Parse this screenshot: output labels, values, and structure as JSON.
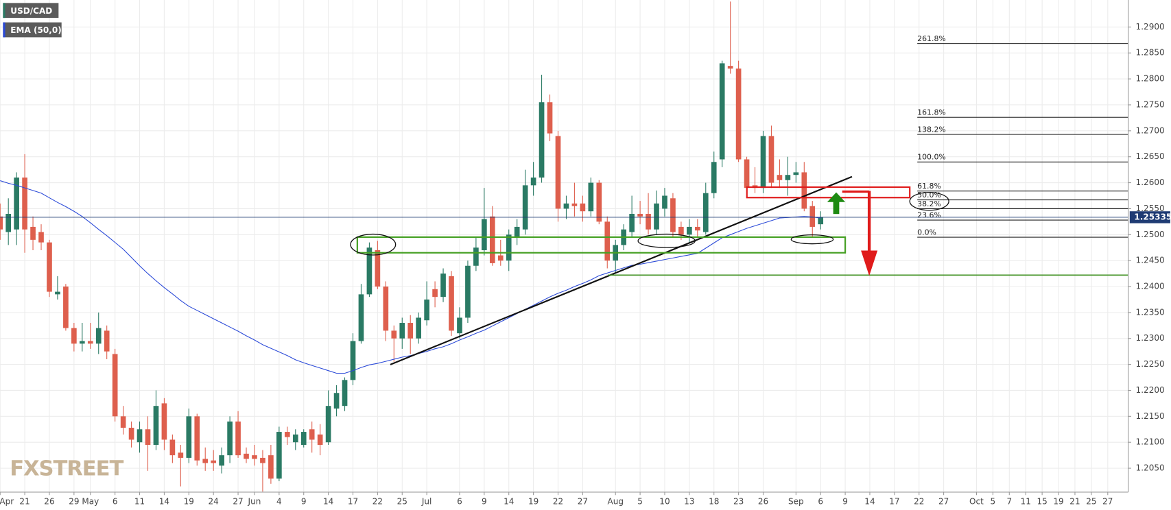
{
  "chart_data": {
    "type": "candlestick",
    "categories": [
      "Apr",
      null,
      null,
      "21",
      null,
      null,
      "26",
      null,
      null,
      "29",
      null,
      "May",
      null,
      null,
      "6",
      null,
      null,
      "11",
      null,
      null,
      "14",
      null,
      null,
      "19",
      null,
      null,
      "24",
      null,
      null,
      "27",
      null,
      "Jun",
      null,
      null,
      "4",
      null,
      null,
      "9",
      null,
      null,
      "14",
      null,
      null,
      "17",
      null,
      null,
      "22",
      null,
      null,
      "25",
      null,
      null,
      "Jul",
      null,
      null,
      null,
      "6",
      null,
      null,
      "9",
      null,
      null,
      "14",
      null,
      null,
      "19",
      null,
      null,
      "22",
      null,
      null,
      "27",
      null,
      null,
      null,
      "Aug",
      null,
      null,
      "5",
      null,
      null,
      "10",
      null,
      null,
      "13",
      null,
      null,
      "18",
      null,
      null,
      "23",
      null,
      null,
      "26",
      null,
      null,
      null,
      "Sep",
      null,
      null,
      "6",
      null,
      null,
      "9",
      null,
      null,
      "14",
      null,
      null,
      "17",
      null,
      null,
      "22",
      null,
      null,
      "27",
      null,
      null,
      null,
      "Oct",
      null,
      "5",
      null,
      "7",
      null,
      "11",
      null,
      "15",
      null,
      "19",
      null,
      "21",
      null,
      "25",
      null,
      "27",
      null,
      null
    ],
    "ohlc": {
      "name": "USD/CAD",
      "up_color": "#2a7a64",
      "down_color": "#de5f4d",
      "open": [
        1.2535,
        1.2505,
        1.251,
        1.261,
        1.2515,
        1.2505,
        1.2485,
        1.2385,
        1.24,
        1.232,
        1.229,
        1.2295,
        1.229,
        1.2315,
        1.227,
        1.215,
        1.2128,
        1.21,
        1.2125,
        1.2095,
        1.2175,
        1.2105,
        1.208,
        1.207,
        1.215,
        1.2068,
        1.2065,
        1.2055,
        1.2075,
        1.214,
        1.2078,
        1.2075,
        1.207,
        1.2075,
        1.203,
        1.212,
        1.21,
        1.2095,
        1.2125,
        1.2115,
        1.21,
        1.2165,
        1.217,
        1.222,
        1.2295,
        1.2385,
        1.247,
        1.24,
        1.2315,
        1.23,
        1.233,
        1.23,
        1.2335,
        1.2395,
        1.238,
        1.242,
        1.231,
        1.234,
        1.244,
        1.247,
        1.2535,
        1.246,
        1.245,
        1.2495,
        1.251,
        1.2595,
        1.261,
        1.2755,
        1.269,
        1.255,
        1.256,
        1.256,
        1.2545,
        1.26,
        1.2525,
        1.245,
        1.248,
        1.2505,
        1.254,
        1.254,
        1.251,
        1.255,
        1.257,
        1.2515,
        1.25,
        1.2515,
        1.2505,
        1.258,
        1.2645,
        1.2825,
        1.282,
        1.2645,
        1.2595,
        1.259,
        1.269,
        1.2615,
        1.2605,
        1.2615,
        1.262,
        1.2555,
        1.252,
        null,
        null,
        null,
        null,
        null,
        null,
        null,
        null,
        null,
        null,
        null,
        null,
        null,
        null,
        null,
        null,
        null,
        null,
        null,
        null,
        null,
        null,
        null,
        null,
        null,
        null,
        null,
        null,
        null,
        null,
        null,
        null,
        null,
        null,
        null,
        null,
        null
      ],
      "high": [
        1.256,
        1.257,
        1.262,
        1.2655,
        1.2535,
        1.252,
        1.249,
        1.242,
        1.2405,
        1.233,
        1.233,
        1.233,
        1.235,
        1.2325,
        1.228,
        1.217,
        1.214,
        1.214,
        1.215,
        1.22,
        1.2185,
        1.2115,
        1.2095,
        1.2165,
        1.2155,
        1.209,
        1.2085,
        1.209,
        1.215,
        1.216,
        1.209,
        1.2095,
        1.2085,
        1.2095,
        1.213,
        1.213,
        1.2125,
        1.2125,
        1.214,
        1.2135,
        1.22,
        1.221,
        1.2225,
        1.231,
        1.2405,
        1.2485,
        1.2488,
        1.241,
        1.2325,
        1.234,
        1.2345,
        1.235,
        1.241,
        1.241,
        1.2435,
        1.243,
        1.236,
        1.245,
        1.2495,
        1.259,
        1.2555,
        1.249,
        1.251,
        1.253,
        1.2625,
        1.264,
        1.2808,
        1.277,
        1.27,
        1.2575,
        1.26,
        1.2575,
        1.261,
        1.2605,
        1.2535,
        1.249,
        1.252,
        1.2575,
        1.2565,
        1.258,
        1.2585,
        1.259,
        1.258,
        1.2525,
        1.253,
        1.253,
        1.26,
        1.266,
        1.2835,
        1.2949,
        1.2835,
        1.265,
        1.263,
        1.27,
        1.271,
        1.2645,
        1.265,
        1.264,
        1.264,
        1.2565,
        1.2545,
        null,
        null,
        null,
        null,
        null,
        null,
        null,
        null,
        null,
        null,
        null,
        null,
        null,
        null,
        null,
        null,
        null,
        null,
        null,
        null,
        null,
        null,
        null,
        null,
        null,
        null,
        null,
        null,
        null,
        null,
        null,
        null,
        null,
        null,
        null,
        null,
        null
      ],
      "low": [
        1.249,
        1.248,
        1.248,
        1.2465,
        1.247,
        1.247,
        1.238,
        1.2375,
        1.2315,
        1.2275,
        1.2275,
        1.228,
        1.227,
        1.226,
        1.214,
        1.2115,
        1.209,
        1.208,
        1.2045,
        1.2085,
        1.2085,
        1.206,
        1.2015,
        1.206,
        1.2055,
        1.2045,
        1.2045,
        1.204,
        1.206,
        1.207,
        1.206,
        1.2055,
        1.2005,
        1.202,
        1.2025,
        1.2095,
        1.2085,
        1.209,
        1.208,
        1.2075,
        1.2095,
        1.215,
        1.216,
        1.221,
        1.229,
        1.238,
        1.2395,
        1.2295,
        1.2255,
        1.228,
        1.227,
        1.229,
        1.2325,
        1.236,
        1.237,
        1.2305,
        1.23,
        1.233,
        1.243,
        1.246,
        1.244,
        1.244,
        1.243,
        1.248,
        1.25,
        1.2575,
        1.26,
        1.268,
        1.2525,
        1.253,
        1.2535,
        1.2525,
        1.2535,
        1.252,
        1.2435,
        1.2425,
        1.247,
        1.2495,
        1.252,
        1.25,
        1.25,
        1.2535,
        1.2495,
        1.249,
        1.2485,
        1.2495,
        1.25,
        1.257,
        1.263,
        1.281,
        1.264,
        1.2585,
        1.258,
        1.258,
        1.259,
        1.259,
        1.2575,
        1.26,
        1.2545,
        1.2495,
        1.251,
        null,
        null,
        null,
        null,
        null,
        null,
        null,
        null,
        null,
        null,
        null,
        null,
        null,
        null,
        null,
        null,
        null,
        null,
        null,
        null,
        null,
        null,
        null,
        null,
        null,
        null,
        null,
        null,
        null,
        null,
        null,
        null,
        null,
        null,
        null,
        null,
        null
      ],
      "close": [
        1.251,
        1.254,
        1.261,
        1.251,
        1.249,
        1.2485,
        1.239,
        1.239,
        1.232,
        1.229,
        1.2295,
        1.229,
        1.232,
        1.2275,
        1.215,
        1.2128,
        1.2105,
        1.2125,
        1.2095,
        1.217,
        1.2105,
        1.2075,
        1.207,
        1.215,
        1.2065,
        1.206,
        1.206,
        1.2075,
        1.214,
        1.2075,
        1.2068,
        1.2068,
        1.206,
        1.203,
        1.212,
        1.211,
        1.2115,
        1.212,
        1.2105,
        1.2095,
        1.217,
        1.2195,
        1.222,
        1.2295,
        1.2385,
        1.2475,
        1.24,
        1.2315,
        1.23,
        1.233,
        1.23,
        1.234,
        1.2375,
        1.238,
        1.2425,
        1.2315,
        1.234,
        1.244,
        1.2475,
        1.253,
        1.2445,
        1.245,
        1.25,
        1.2515,
        1.2595,
        1.261,
        1.2755,
        1.2695,
        1.255,
        1.256,
        1.2555,
        1.2545,
        1.26,
        1.2525,
        1.245,
        1.248,
        1.251,
        1.254,
        1.2535,
        1.251,
        1.256,
        1.2575,
        1.2505,
        1.25,
        1.2515,
        1.2508,
        1.258,
        1.264,
        1.283,
        1.282,
        1.2645,
        1.259,
        1.259,
        1.269,
        1.26,
        1.2605,
        1.2615,
        1.262,
        1.255,
        1.2515,
        1.2534,
        null,
        null,
        null,
        null,
        null,
        null,
        null,
        null,
        null,
        null,
        null,
        null,
        null,
        null,
        null,
        null,
        null,
        null,
        null,
        null,
        null,
        null,
        null,
        null,
        null,
        null,
        null,
        null,
        null,
        null,
        null,
        null,
        null,
        null,
        null,
        null,
        null
      ]
    },
    "series": [
      {
        "name": "EMA (50,0)",
        "color": "#2b4ad8",
        "values": [
          1.2604,
          1.2599,
          1.2595,
          1.259,
          1.2585,
          1.258,
          1.2571,
          1.2562,
          1.2554,
          1.2545,
          1.2535,
          1.2523,
          1.251,
          1.2498,
          1.2485,
          1.2472,
          1.2456,
          1.244,
          1.2425,
          1.2411,
          1.2398,
          1.2386,
          1.2373,
          1.2362,
          1.2354,
          1.2346,
          1.2338,
          1.233,
          1.2322,
          1.2314,
          1.2305,
          1.2297,
          1.2288,
          1.2281,
          1.2274,
          1.2267,
          1.2259,
          1.2253,
          1.2248,
          1.2243,
          1.2238,
          1.2233,
          1.2233,
          1.2238,
          1.2244,
          1.2249,
          1.2252,
          1.2256,
          1.226,
          1.2264,
          1.2267,
          1.2271,
          1.2275,
          1.228,
          1.2284,
          1.229,
          1.2297,
          1.2303,
          1.231,
          1.2316,
          1.2324,
          1.2332,
          1.234,
          1.2348,
          1.2356,
          1.2364,
          1.2372,
          1.238,
          1.2387,
          1.2393,
          1.24,
          1.2406,
          1.2413,
          1.2421,
          1.2426,
          1.2431,
          1.2436,
          1.2441,
          1.2443,
          1.2446,
          1.2449,
          1.2452,
          1.2455,
          1.2458,
          1.2461,
          1.2464,
          1.2474,
          1.2484,
          1.2494,
          1.25,
          1.2506,
          1.2512,
          1.2517,
          1.2522,
          1.2527,
          1.2532,
          1.2533,
          1.2534,
          1.2535,
          1.2534,
          1.2532,
          null,
          null,
          null,
          null,
          null,
          null,
          null,
          null,
          null,
          null,
          null,
          null,
          null,
          null,
          null,
          null,
          null,
          null,
          null,
          null,
          null,
          null,
          null,
          null,
          null,
          null,
          null,
          null,
          null,
          null,
          null,
          null,
          null,
          null,
          null,
          null,
          null
        ]
      }
    ],
    "ylim": [
      1.2004,
      1.2952
    ],
    "yticks": [
      {
        "value": 1.205,
        "label": "1.2050"
      },
      {
        "value": 1.21,
        "label": "1.2100"
      },
      {
        "value": 1.215,
        "label": "1.2150"
      },
      {
        "value": 1.22,
        "label": "1.2200"
      },
      {
        "value": 1.225,
        "label": "1.2250"
      },
      {
        "value": 1.23,
        "label": "1.2300"
      },
      {
        "value": 1.235,
        "label": "1.2350"
      },
      {
        "value": 1.24,
        "label": "1.2400"
      },
      {
        "value": 1.245,
        "label": "1.2450"
      },
      {
        "value": 1.25,
        "label": "1.2500"
      },
      {
        "value": 1.255,
        "label": "1.2550"
      },
      {
        "value": 1.26,
        "label": "1.2600"
      },
      {
        "value": 1.265,
        "label": "1.2650"
      },
      {
        "value": 1.27,
        "label": "1.2700"
      },
      {
        "value": 1.275,
        "label": "1.2750"
      },
      {
        "value": 1.28,
        "label": "1.2800"
      },
      {
        "value": 1.285,
        "label": "1.2850"
      },
      {
        "value": 1.29,
        "label": "1.2900"
      }
    ],
    "grid": true,
    "last_price": {
      "value": 1.25335,
      "label": "1.253350"
    },
    "fib_levels": [
      {
        "label": "261.8%",
        "value": 1.2868
      },
      {
        "label": "161.8%",
        "value": 1.2726
      },
      {
        "label": "138.2%",
        "value": 1.2693
      },
      {
        "label": "100.0%",
        "value": 1.264
      },
      {
        "label": "61.8%",
        "value": 1.2584
      },
      {
        "label": "50.0%",
        "value": 1.2567
      },
      {
        "label": "38.2%",
        "value": 1.255
      },
      {
        "label": "23.6%",
        "value": 1.2528
      },
      {
        "label": "0.0%",
        "value": 1.2495
      }
    ],
    "watermark": "FXSTREET"
  }
}
